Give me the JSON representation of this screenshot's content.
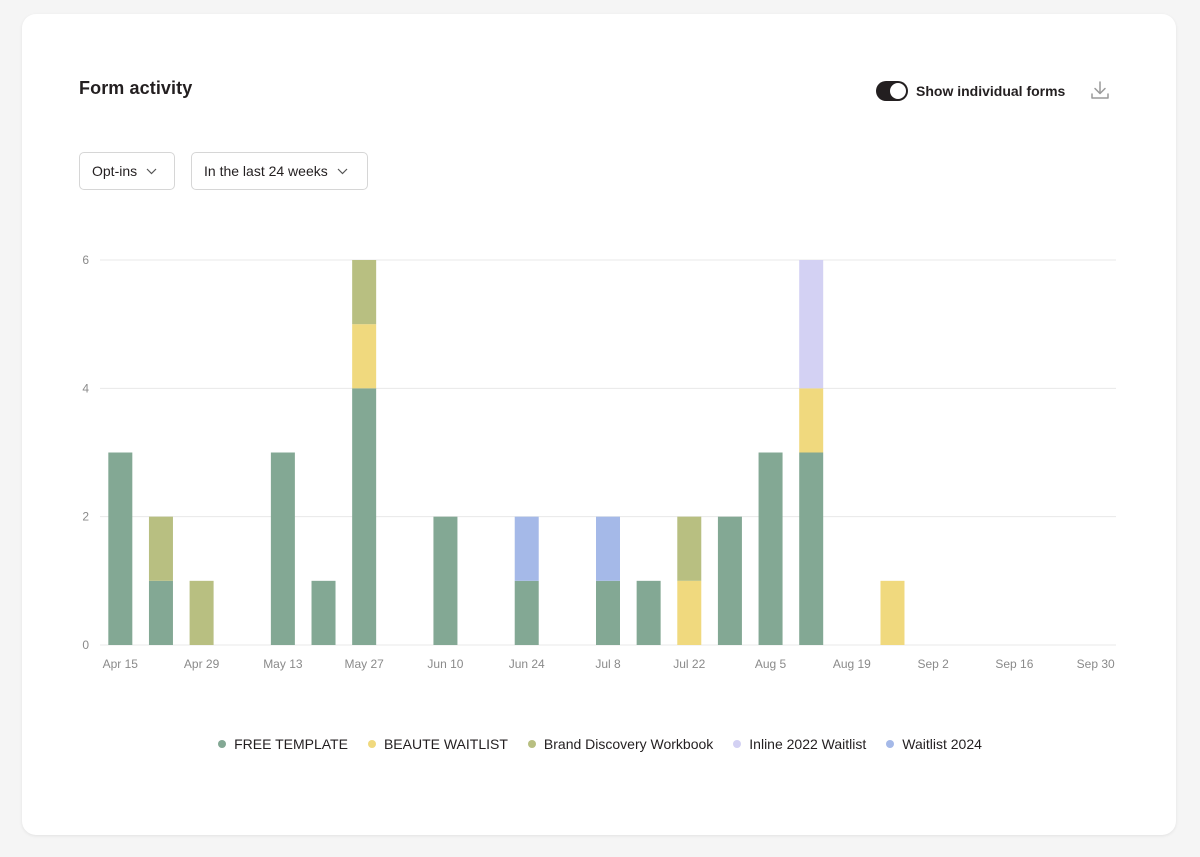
{
  "header": {
    "title": "Form activity",
    "toggle_label": "Show individual forms",
    "toggle_on": true,
    "download_icon": "download-icon"
  },
  "filters": {
    "metric": {
      "value": "Opt-ins",
      "icon": "chevron-down-icon"
    },
    "range": {
      "value": "In the last 24 weeks",
      "icon": "chevron-down-icon"
    }
  },
  "chart_data": {
    "type": "bar",
    "stacked": true,
    "title": "Form activity",
    "xlabel": "",
    "ylabel": "Opt-ins",
    "ylim": [
      0,
      6
    ],
    "yticks": [
      0,
      2,
      4,
      6
    ],
    "grid": true,
    "legend_position": "bottom-center",
    "categories": [
      "Apr 15",
      "Apr 22",
      "Apr 29",
      "May 6",
      "May 13",
      "May 20",
      "May 27",
      "Jun 3",
      "Jun 10",
      "Jun 17",
      "Jun 24",
      "Jul 1",
      "Jul 8",
      "Jul 15",
      "Jul 22",
      "Jul 29",
      "Aug 5",
      "Aug 12",
      "Aug 19",
      "Aug 26",
      "Sep 2",
      "Sep 9",
      "Sep 16",
      "Sep 23",
      "Sep 30"
    ],
    "xtick_labels": [
      "Apr 15",
      "Apr 29",
      "May 13",
      "May 27",
      "Jun 10",
      "Jun 24",
      "Jul 8",
      "Jul 22",
      "Aug 5",
      "Aug 19",
      "Sep 2",
      "Sep 16",
      "Sep 30"
    ],
    "series": [
      {
        "name": "FREE TEMPLATE",
        "color": "#83a894",
        "values": [
          3,
          1,
          0,
          0,
          3,
          1,
          4,
          0,
          2,
          0,
          1,
          0,
          1,
          1,
          0,
          2,
          3,
          3,
          0,
          0,
          0,
          0,
          0,
          0,
          0
        ]
      },
      {
        "name": "BEAUTE WAITLIST",
        "color": "#f0d97e",
        "values": [
          0,
          0,
          0,
          0,
          0,
          0,
          1,
          0,
          0,
          0,
          0,
          0,
          0,
          0,
          1,
          0,
          0,
          1,
          0,
          1,
          0,
          0,
          0,
          0,
          0
        ]
      },
      {
        "name": "Brand Discovery Workbook",
        "color": "#b8bf81",
        "values": [
          0,
          1,
          1,
          0,
          0,
          0,
          1,
          0,
          0,
          0,
          0,
          0,
          0,
          0,
          1,
          0,
          0,
          0,
          0,
          0,
          0,
          0,
          0,
          0,
          0
        ]
      },
      {
        "name": "Inline 2022 Waitlist",
        "color": "#d3d1f3",
        "values": [
          0,
          0,
          0,
          0,
          0,
          0,
          0,
          0,
          0,
          0,
          0,
          0,
          0,
          0,
          0,
          0,
          0,
          2,
          0,
          0,
          0,
          0,
          0,
          0,
          0
        ]
      },
      {
        "name": "Waitlist 2024",
        "color": "#a5b9e8",
        "values": [
          0,
          0,
          0,
          0,
          0,
          0,
          0,
          0,
          0,
          0,
          1,
          0,
          1,
          0,
          0,
          0,
          0,
          0,
          0,
          0,
          0,
          0,
          0,
          0,
          0
        ]
      }
    ],
    "stack_order": [
      "FREE TEMPLATE",
      "BEAUTE WAITLIST",
      "Brand Discovery Workbook",
      "Waitlist 2024",
      "Inline 2022 Waitlist"
    ]
  }
}
